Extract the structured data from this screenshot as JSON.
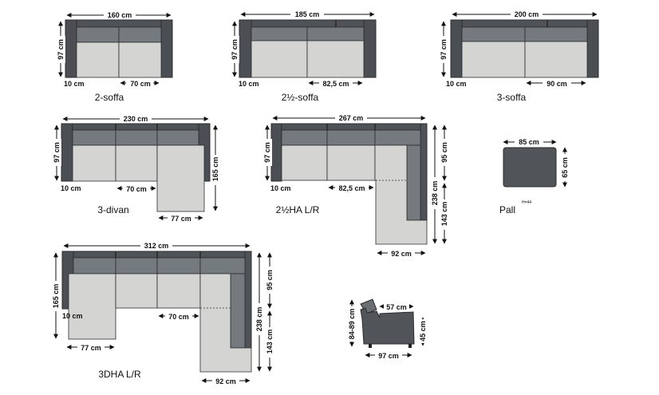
{
  "colors": {
    "upholstery_dark": "#4b4e52",
    "cushion": "#757a7e",
    "seat": "#d4d5d3",
    "line": "#111111"
  },
  "sofa_2": {
    "name": "2-soffa",
    "width": "160 cm",
    "depth": "97 cm",
    "arm": "10 cm",
    "seat": "70 cm"
  },
  "sofa_2_5": {
    "name": "2½-soffa",
    "width": "185 cm",
    "depth": "97 cm",
    "arm": "10 cm",
    "seat": "82,5 cm"
  },
  "sofa_3": {
    "name": "3-soffa",
    "width": "200 cm",
    "depth": "97 cm",
    "arm": "10 cm",
    "seat": "90 cm"
  },
  "divan_3": {
    "name": "3-divan",
    "width": "230 cm",
    "depth": "97 cm",
    "arm": "10 cm",
    "seat": "70 cm",
    "chaise_depth": "165 cm",
    "chaise_width": "77 cm"
  },
  "ha_2_5": {
    "name": "2½HA L/R",
    "width": "267 cm",
    "depth": "97 cm",
    "arm": "10 cm",
    "seat": "82,5 cm",
    "right_back": "95 cm",
    "right_total": "238 cm",
    "right_lower": "143 cm",
    "right_width": "92 cm"
  },
  "pall": {
    "name": "Pall",
    "height_note": "H=44",
    "width": "85 cm",
    "depth": "65 cm"
  },
  "dha_3": {
    "name": "3DHA L/R",
    "width": "312 cm",
    "left_depth": "165 cm",
    "arm": "10 cm",
    "seat": "70 cm",
    "left_width": "77 cm",
    "right_back": "95 cm",
    "right_total": "238 cm",
    "right_lower": "143 cm",
    "right_width": "92 cm"
  },
  "armchair": {
    "back_height": "84-89 cm",
    "top_width": "57 cm",
    "seat_height": "45 cm",
    "width": "97 cm"
  }
}
